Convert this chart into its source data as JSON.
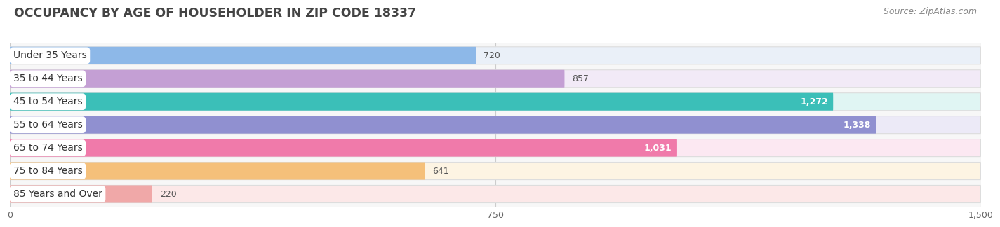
{
  "title": "OCCUPANCY BY AGE OF HOUSEHOLDER IN ZIP CODE 18337",
  "source": "Source: ZipAtlas.com",
  "categories": [
    "Under 35 Years",
    "35 to 44 Years",
    "45 to 54 Years",
    "55 to 64 Years",
    "65 to 74 Years",
    "75 to 84 Years",
    "85 Years and Over"
  ],
  "values": [
    720,
    857,
    1272,
    1338,
    1031,
    641,
    220
  ],
  "bar_colors": [
    "#8db8e8",
    "#c49fd4",
    "#3bbfb8",
    "#9090d0",
    "#f07aaa",
    "#f5c07a",
    "#f0a8a8"
  ],
  "bar_bg_colors": [
    "#eaf0f8",
    "#f2eaf7",
    "#e0f5f3",
    "#eceaf7",
    "#fce8f2",
    "#fdf4e3",
    "#fce8e8"
  ],
  "xlim": [
    0,
    1500
  ],
  "xticks": [
    0,
    750,
    1500
  ],
  "background_color": "#ffffff",
  "plot_bg_color": "#f7f7f7",
  "title_color": "#444444",
  "title_fontsize": 12.5,
  "label_fontsize": 10,
  "value_fontsize": 9,
  "source_fontsize": 9,
  "source_color": "#888888",
  "value_threshold": 900,
  "bar_border_color": "#dddddd"
}
